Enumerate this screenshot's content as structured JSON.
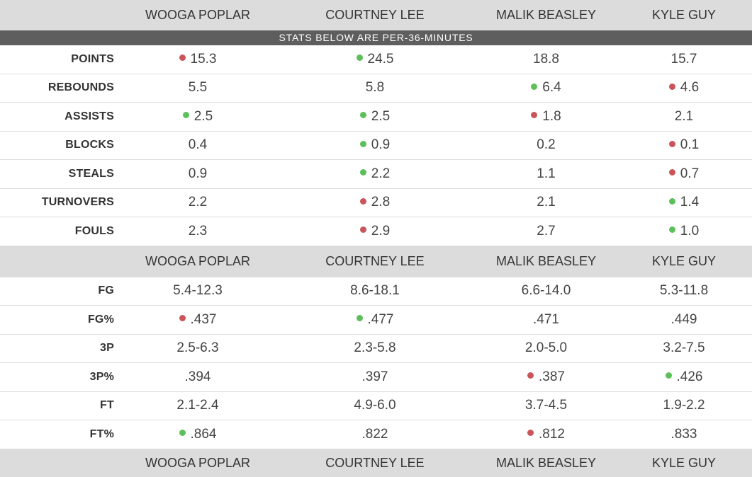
{
  "players": [
    "WOOGA POPLAR",
    "COURTNEY LEE",
    "MALIK BEASLEY",
    "KYLE GUY"
  ],
  "banner": "STATS BELOW ARE PER-36-MINUTES",
  "colors": {
    "good": "#5cc05a",
    "bad": "#c9555a",
    "header_bg": "#dcdcdc",
    "banner_bg": "#5e5e5e"
  },
  "section1": [
    {
      "label": "POINTS",
      "cells": [
        {
          "v": "15.3",
          "m": "bad"
        },
        {
          "v": "24.5",
          "m": "good"
        },
        {
          "v": "18.8",
          "m": "none"
        },
        {
          "v": "15.7",
          "m": "none"
        }
      ]
    },
    {
      "label": "REBOUNDS",
      "cells": [
        {
          "v": "5.5",
          "m": "none"
        },
        {
          "v": "5.8",
          "m": "none"
        },
        {
          "v": "6.4",
          "m": "good"
        },
        {
          "v": "4.6",
          "m": "bad"
        }
      ]
    },
    {
      "label": "ASSISTS",
      "cells": [
        {
          "v": "2.5",
          "m": "good"
        },
        {
          "v": "2.5",
          "m": "good"
        },
        {
          "v": "1.8",
          "m": "bad"
        },
        {
          "v": "2.1",
          "m": "none"
        }
      ]
    },
    {
      "label": "BLOCKS",
      "cells": [
        {
          "v": "0.4",
          "m": "none"
        },
        {
          "v": "0.9",
          "m": "good"
        },
        {
          "v": "0.2",
          "m": "none"
        },
        {
          "v": "0.1",
          "m": "bad"
        }
      ]
    },
    {
      "label": "STEALS",
      "cells": [
        {
          "v": "0.9",
          "m": "none"
        },
        {
          "v": "2.2",
          "m": "good"
        },
        {
          "v": "1.1",
          "m": "none"
        },
        {
          "v": "0.7",
          "m": "bad"
        }
      ]
    },
    {
      "label": "TURNOVERS",
      "cells": [
        {
          "v": "2.2",
          "m": "none"
        },
        {
          "v": "2.8",
          "m": "bad"
        },
        {
          "v": "2.1",
          "m": "none"
        },
        {
          "v": "1.4",
          "m": "good"
        }
      ]
    },
    {
      "label": "FOULS",
      "cells": [
        {
          "v": "2.3",
          "m": "none"
        },
        {
          "v": "2.9",
          "m": "bad"
        },
        {
          "v": "2.7",
          "m": "none"
        },
        {
          "v": "1.0",
          "m": "good"
        }
      ]
    }
  ],
  "section2": [
    {
      "label": "FG",
      "cells": [
        {
          "v": "5.4-12.3",
          "m": "none"
        },
        {
          "v": "8.6-18.1",
          "m": "none"
        },
        {
          "v": "6.6-14.0",
          "m": "none"
        },
        {
          "v": "5.3-11.8",
          "m": "none"
        }
      ]
    },
    {
      "label": "FG%",
      "cells": [
        {
          "v": ".437",
          "m": "bad"
        },
        {
          "v": ".477",
          "m": "good"
        },
        {
          "v": ".471",
          "m": "none"
        },
        {
          "v": ".449",
          "m": "none"
        }
      ]
    },
    {
      "label": "3P",
      "cells": [
        {
          "v": "2.5-6.3",
          "m": "none"
        },
        {
          "v": "2.3-5.8",
          "m": "none"
        },
        {
          "v": "2.0-5.0",
          "m": "none"
        },
        {
          "v": "3.2-7.5",
          "m": "none"
        }
      ]
    },
    {
      "label": "3P%",
      "cells": [
        {
          "v": ".394",
          "m": "none"
        },
        {
          "v": ".397",
          "m": "none"
        },
        {
          "v": ".387",
          "m": "bad"
        },
        {
          "v": ".426",
          "m": "good"
        }
      ]
    },
    {
      "label": "FT",
      "cells": [
        {
          "v": "2.1-2.4",
          "m": "none"
        },
        {
          "v": "4.9-6.0",
          "m": "none"
        },
        {
          "v": "3.7-4.5",
          "m": "none"
        },
        {
          "v": "1.9-2.2",
          "m": "none"
        }
      ]
    },
    {
      "label": "FT%",
      "cells": [
        {
          "v": ".864",
          "m": "good"
        },
        {
          "v": ".822",
          "m": "none"
        },
        {
          "v": ".812",
          "m": "bad"
        },
        {
          "v": ".833",
          "m": "none"
        }
      ]
    }
  ]
}
